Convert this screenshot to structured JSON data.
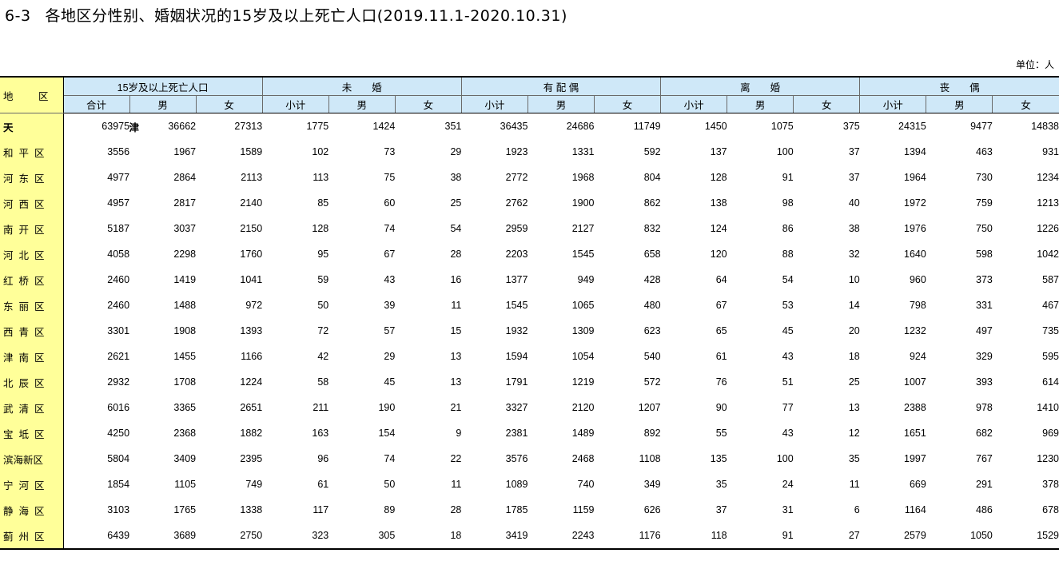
{
  "title": {
    "number": "6-3",
    "text": "各地区分性别、婚姻状况的15岁及以上死亡人口(2019.11.1-2020.10.31)"
  },
  "unit": "单位：人",
  "header": {
    "region": "地 区",
    "groups": [
      "15岁及以上死亡人口",
      "未　　婚",
      "有 配 偶",
      "离　　婚",
      "丧　　偶"
    ],
    "sub_first": [
      "合计",
      "男",
      "女"
    ],
    "sub_other": [
      "小计",
      "男",
      "女"
    ]
  },
  "rows": [
    {
      "name": "天　　津",
      "values": [
        "63975",
        "36662",
        "27313",
        "1775",
        "1424",
        "351",
        "36435",
        "24686",
        "11749",
        "1450",
        "1075",
        "375",
        "24315",
        "9477",
        "14838"
      ]
    },
    {
      "name": "和平区",
      "values": [
        "3556",
        "1967",
        "1589",
        "102",
        "73",
        "29",
        "1923",
        "1331",
        "592",
        "137",
        "100",
        "37",
        "1394",
        "463",
        "931"
      ]
    },
    {
      "name": "河东区",
      "values": [
        "4977",
        "2864",
        "2113",
        "113",
        "75",
        "38",
        "2772",
        "1968",
        "804",
        "128",
        "91",
        "37",
        "1964",
        "730",
        "1234"
      ]
    },
    {
      "name": "河西区",
      "values": [
        "4957",
        "2817",
        "2140",
        "85",
        "60",
        "25",
        "2762",
        "1900",
        "862",
        "138",
        "98",
        "40",
        "1972",
        "759",
        "1213"
      ]
    },
    {
      "name": "南开区",
      "values": [
        "5187",
        "3037",
        "2150",
        "128",
        "74",
        "54",
        "2959",
        "2127",
        "832",
        "124",
        "86",
        "38",
        "1976",
        "750",
        "1226"
      ]
    },
    {
      "name": "河北区",
      "values": [
        "4058",
        "2298",
        "1760",
        "95",
        "67",
        "28",
        "2203",
        "1545",
        "658",
        "120",
        "88",
        "32",
        "1640",
        "598",
        "1042"
      ]
    },
    {
      "name": "红桥区",
      "values": [
        "2460",
        "1419",
        "1041",
        "59",
        "43",
        "16",
        "1377",
        "949",
        "428",
        "64",
        "54",
        "10",
        "960",
        "373",
        "587"
      ]
    },
    {
      "name": "东丽区",
      "values": [
        "2460",
        "1488",
        "972",
        "50",
        "39",
        "11",
        "1545",
        "1065",
        "480",
        "67",
        "53",
        "14",
        "798",
        "331",
        "467"
      ]
    },
    {
      "name": "西青区",
      "values": [
        "3301",
        "1908",
        "1393",
        "72",
        "57",
        "15",
        "1932",
        "1309",
        "623",
        "65",
        "45",
        "20",
        "1232",
        "497",
        "735"
      ]
    },
    {
      "name": "津南区",
      "values": [
        "2621",
        "1455",
        "1166",
        "42",
        "29",
        "13",
        "1594",
        "1054",
        "540",
        "61",
        "43",
        "18",
        "924",
        "329",
        "595"
      ]
    },
    {
      "name": "北辰区",
      "values": [
        "2932",
        "1708",
        "1224",
        "58",
        "45",
        "13",
        "1791",
        "1219",
        "572",
        "76",
        "51",
        "25",
        "1007",
        "393",
        "614"
      ]
    },
    {
      "name": "武清区",
      "values": [
        "6016",
        "3365",
        "2651",
        "211",
        "190",
        "21",
        "3327",
        "2120",
        "1207",
        "90",
        "77",
        "13",
        "2388",
        "978",
        "1410"
      ]
    },
    {
      "name": "宝坻区",
      "values": [
        "4250",
        "2368",
        "1882",
        "163",
        "154",
        "9",
        "2381",
        "1489",
        "892",
        "55",
        "43",
        "12",
        "1651",
        "682",
        "969"
      ]
    },
    {
      "name": "滨海新区",
      "values": [
        "5804",
        "3409",
        "2395",
        "96",
        "74",
        "22",
        "3576",
        "2468",
        "1108",
        "135",
        "100",
        "35",
        "1997",
        "767",
        "1230"
      ]
    },
    {
      "name": "宁河区",
      "values": [
        "1854",
        "1105",
        "749",
        "61",
        "50",
        "11",
        "1089",
        "740",
        "349",
        "35",
        "24",
        "11",
        "669",
        "291",
        "378"
      ]
    },
    {
      "name": "静海区",
      "values": [
        "3103",
        "1765",
        "1338",
        "117",
        "89",
        "28",
        "1785",
        "1159",
        "626",
        "37",
        "31",
        "6",
        "1164",
        "486",
        "678"
      ]
    },
    {
      "name": "蓟州区",
      "values": [
        "6439",
        "3689",
        "2750",
        "323",
        "305",
        "18",
        "3419",
        "2243",
        "1176",
        "118",
        "91",
        "27",
        "2579",
        "1050",
        "1529"
      ]
    }
  ]
}
